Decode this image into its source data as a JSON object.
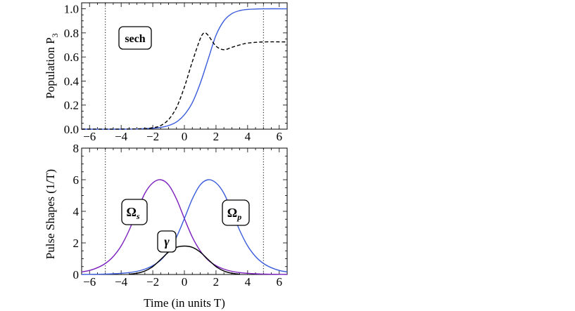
{
  "chart_data": [
    {
      "type": "line",
      "ylabel": "Population P",
      "ylabel_sub": "3",
      "xlabel": "",
      "xlim": [
        -6.5,
        6.5
      ],
      "ylim": [
        0,
        1.05
      ],
      "xticks": [
        "−6",
        "−4",
        "−2",
        "0",
        "2",
        "4",
        "6"
      ],
      "yticks": [
        "0.0",
        "0.2",
        "0.4",
        "0.6",
        "0.8",
        "1.0"
      ],
      "grid": false,
      "vertical_dotted_lines_at": [
        -5,
        5
      ],
      "annotation": "sech",
      "series": [
        {
          "style": "solid",
          "color": "#3a5bdc",
          "x": [
            -6.5,
            -4,
            -3,
            -2,
            -1.5,
            -1,
            -0.5,
            0,
            0.5,
            1,
            1.5,
            2,
            2.5,
            3,
            3.5,
            4,
            5,
            6.5
          ],
          "y": [
            0,
            0,
            0.002,
            0.008,
            0.015,
            0.03,
            0.06,
            0.12,
            0.22,
            0.38,
            0.58,
            0.78,
            0.9,
            0.96,
            0.985,
            0.995,
            1.0,
            1.0
          ]
        },
        {
          "style": "dashed",
          "color": "#000000",
          "x": [
            -6.5,
            -3,
            -2,
            -1.5,
            -1,
            -0.5,
            0,
            0.5,
            1,
            1.25,
            1.5,
            2,
            2.5,
            3,
            3.5,
            4,
            5,
            6.5
          ],
          "y": [
            0,
            0.002,
            0.012,
            0.03,
            0.08,
            0.18,
            0.35,
            0.56,
            0.75,
            0.8,
            0.78,
            0.69,
            0.66,
            0.68,
            0.7,
            0.715,
            0.725,
            0.725
          ]
        }
      ]
    },
    {
      "type": "line",
      "ylabel": "Pulse Shapes (1/T)",
      "xlabel": "Time (in units T)",
      "xlim": [
        -6.5,
        6.5
      ],
      "ylim": [
        0,
        8
      ],
      "xticks": [
        "−6",
        "−4",
        "−2",
        "0",
        "2",
        "4",
        "6"
      ],
      "yticks": [
        "0",
        "2",
        "4",
        "6",
        "8"
      ],
      "grid": false,
      "vertical_dotted_lines_at": [
        -5,
        5
      ],
      "annotations": [
        "Ω",
        "γ",
        "Ω"
      ],
      "annotation_subscripts": [
        "s",
        "",
        "p"
      ],
      "series": [
        {
          "label": "Ωs",
          "color": "#7b1fbf",
          "x": [
            -6.5,
            -6,
            -5.5,
            -5,
            -4.5,
            -4,
            -3.5,
            -3,
            -2.5,
            -2,
            -1.5,
            -1,
            -0.5,
            0,
            0.5,
            1,
            1.5,
            2,
            2.5,
            3,
            3.5,
            4,
            4.5,
            5,
            5.5,
            6,
            6.5
          ],
          "y": [
            0.16,
            0.26,
            0.43,
            0.7,
            1.14,
            1.81,
            2.79,
            3.99,
            5.14,
            5.8,
            6.0,
            5.67,
            4.78,
            3.54,
            2.37,
            1.5,
            0.91,
            0.56,
            0.34,
            0.2,
            0.12,
            0.074,
            0.045,
            0.027,
            0.016,
            0.01,
            0.006
          ]
        },
        {
          "label": "Ωp",
          "color": "#3a5bdc",
          "x": [
            -6.5,
            -6,
            -5.5,
            -5,
            -4.5,
            -4,
            -3.5,
            -3,
            -2.5,
            -2,
            -1.5,
            -1,
            -0.5,
            0,
            0.5,
            1,
            1.5,
            2,
            2.5,
            3,
            3.5,
            4,
            4.5,
            5,
            5.5,
            6,
            6.5
          ],
          "y": [
            0.006,
            0.01,
            0.016,
            0.027,
            0.045,
            0.074,
            0.12,
            0.2,
            0.34,
            0.56,
            0.91,
            1.5,
            2.37,
            3.54,
            4.78,
            5.67,
            6.0,
            5.8,
            5.14,
            3.99,
            2.79,
            1.81,
            1.14,
            0.7,
            0.43,
            0.26,
            0.16
          ]
        },
        {
          "label": "γ",
          "color": "#000000",
          "x": [
            -3.5,
            -3,
            -2.5,
            -2,
            -1.5,
            -1,
            -0.5,
            0,
            0.5,
            1,
            1.5,
            2,
            2.5,
            3,
            3.5
          ],
          "y": [
            0.02,
            0.08,
            0.22,
            0.5,
            0.95,
            1.42,
            1.72,
            1.8,
            1.72,
            1.42,
            0.95,
            0.5,
            0.22,
            0.08,
            0.02
          ]
        }
      ]
    }
  ]
}
